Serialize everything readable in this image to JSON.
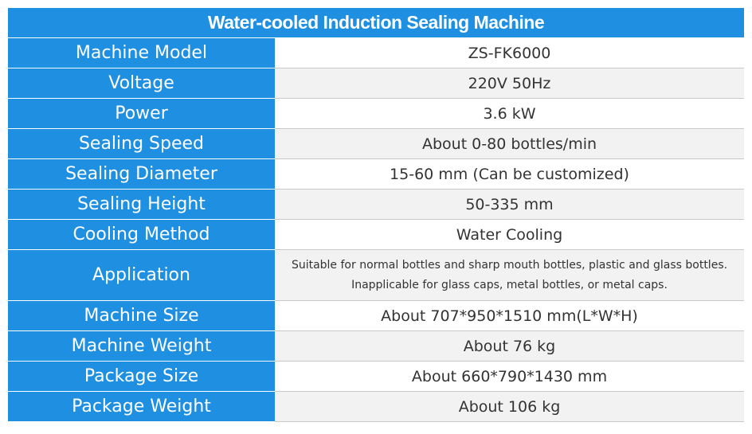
{
  "header": {
    "title": "Water-cooled Induction Sealing Machine"
  },
  "table": {
    "rows": [
      [
        "Machine Model",
        "ZS-FK6000"
      ],
      [
        "Voltage",
        "220V 50Hz"
      ],
      [
        "Power",
        "3.6 kW"
      ],
      [
        "Sealing Speed",
        "About 0-80 bottles/min"
      ],
      [
        "Sealing Diameter",
        "15-60 mm (Can be customized)"
      ],
      [
        "Sealing Height",
        "50-335 mm"
      ],
      [
        "Cooling Method",
        "Water Cooling"
      ],
      [
        "Application",
        [
          "Suitable for normal bottles and sharp mouth bottles, plastic and glass bottles.",
          "Inapplicable for glass caps, metal bottles, or metal caps."
        ]
      ],
      [
        "Machine Size",
        "About 707*950*1510 mm(L*W*H)"
      ],
      [
        "Machine Weight",
        "About 76 kg"
      ],
      [
        "Package Size",
        "About 660*790*1430 mm"
      ],
      [
        "Package Weight",
        "About 106 kg"
      ]
    ]
  }
}
